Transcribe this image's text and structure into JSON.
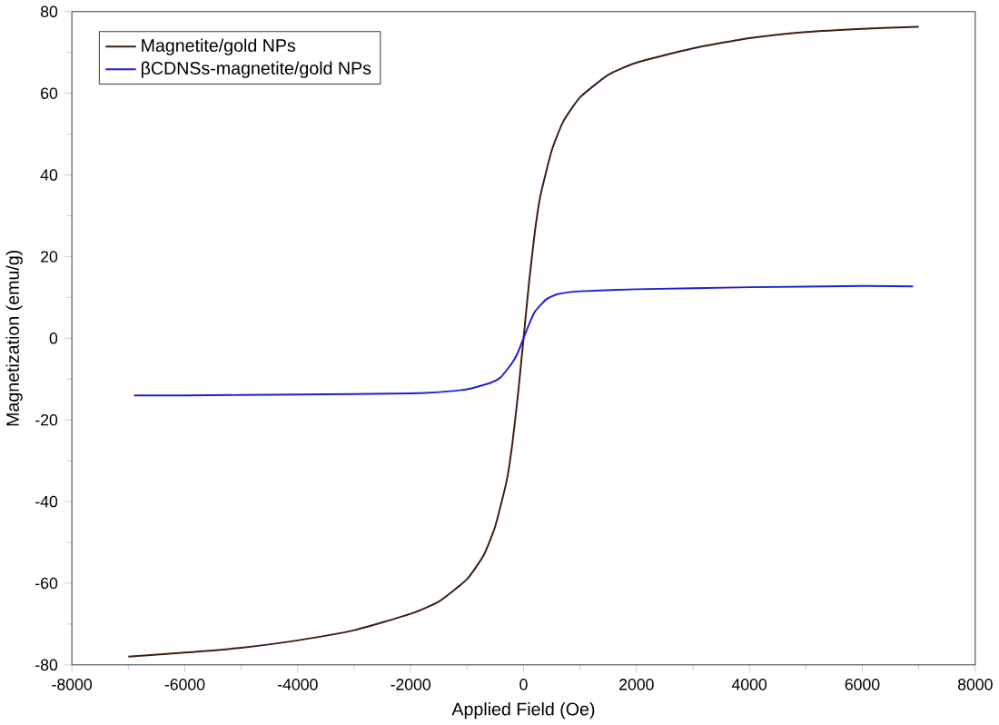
{
  "chart_data": {
    "type": "line",
    "xlabel": "Applied Field (Oe)",
    "ylabel": "Magnetization (emu/g)",
    "xlim": [
      -8000,
      8000
    ],
    "ylim": [
      -80,
      80
    ],
    "xticks": [
      -8000,
      -6000,
      -4000,
      -2000,
      0,
      2000,
      4000,
      6000,
      8000
    ],
    "yticks": [
      -80,
      -60,
      -40,
      -20,
      0,
      20,
      40,
      60,
      80
    ],
    "grid": false,
    "legend": "top left",
    "marker": "none",
    "line_style": "solid",
    "series": [
      {
        "name": "Magnetite/gold NPs",
        "color": "#3b1e12",
        "x": [
          -7000,
          -6000,
          -5000,
          -4000,
          -3000,
          -2000,
          -1500,
          -1000,
          -700,
          -500,
          -300,
          -200,
          -100,
          0,
          100,
          200,
          300,
          500,
          700,
          1000,
          1500,
          2000,
          3000,
          4000,
          5000,
          6000,
          7000
        ],
        "values": [
          -78,
          -77,
          -75.8,
          -74,
          -71.5,
          -67.5,
          -64.5,
          -59,
          -53,
          -46,
          -35,
          -26,
          -14,
          0,
          14,
          26,
          35,
          46,
          53,
          59,
          64.5,
          67.5,
          71,
          73.5,
          75,
          75.8,
          76.3
        ]
      },
      {
        "name": "βCDNSs-magnetite/gold NPs",
        "color": "#2020d0",
        "x": [
          -6900,
          -6000,
          -4000,
          -2000,
          -1500,
          -1000,
          -600,
          -400,
          -200,
          -100,
          0,
          100,
          200,
          400,
          600,
          1000,
          2000,
          4000,
          6000,
          6900
        ],
        "values": [
          -14,
          -14,
          -13.8,
          -13.5,
          -13.2,
          -12.5,
          -11,
          -9.5,
          -6,
          -3.5,
          0,
          3.5,
          6.5,
          9.5,
          10.8,
          11.5,
          12,
          12.5,
          12.8,
          12.7
        ]
      }
    ]
  }
}
